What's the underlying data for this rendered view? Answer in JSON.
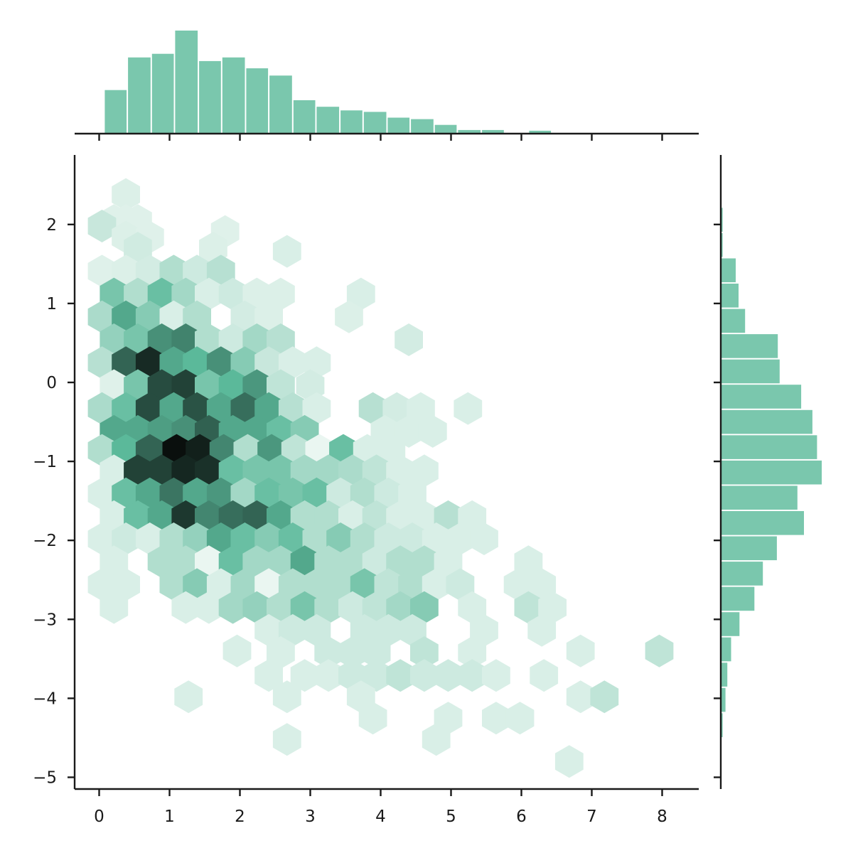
{
  "chart_data": {
    "type": "heatmap",
    "subtype": "hexbin-jointplot",
    "title": "",
    "xlabel": "",
    "ylabel": "",
    "xlim": [
      -0.35,
      8.55
    ],
    "ylim": [
      -5.15,
      2.85
    ],
    "x_ticks": [
      0,
      1,
      2,
      3,
      4,
      5,
      6,
      7,
      8
    ],
    "y_ticks": [
      2,
      1,
      0,
      -1,
      -2,
      -3,
      -4,
      -5
    ],
    "colors": {
      "marginal_bar": "#7ac7ad",
      "hex_light": "#eaf6f1",
      "hex_mid": "#5bb99a",
      "hex_dark": "#0a0f0d",
      "axis": "#1a1a1a"
    },
    "hex_size": 0.201,
    "hexbins": [
      [
        0.38,
        2.38,
        0.05
      ],
      [
        0.38,
        2.05,
        0.04
      ],
      [
        0.21,
        2.05,
        0.04
      ],
      [
        0.55,
        2.05,
        0.04
      ],
      [
        0.04,
        1.98,
        0.12
      ],
      [
        0.38,
        1.84,
        0.05
      ],
      [
        0.72,
        1.84,
        0.04
      ],
      [
        1.79,
        1.91,
        0.04
      ],
      [
        0.55,
        1.7,
        0.09
      ],
      [
        1.62,
        1.7,
        0.05
      ],
      [
        2.67,
        1.66,
        0.06
      ],
      [
        0.04,
        1.41,
        0.04
      ],
      [
        0.38,
        1.41,
        0.05
      ],
      [
        0.72,
        1.41,
        0.08
      ],
      [
        1.06,
        1.41,
        0.2
      ],
      [
        1.39,
        1.41,
        0.1
      ],
      [
        1.73,
        1.41,
        0.18
      ],
      [
        0.21,
        1.12,
        0.4
      ],
      [
        0.55,
        1.12,
        0.2
      ],
      [
        0.89,
        1.12,
        0.45
      ],
      [
        1.23,
        1.12,
        0.25
      ],
      [
        1.56,
        1.12,
        0.06
      ],
      [
        1.9,
        1.12,
        0.1
      ],
      [
        2.24,
        1.12,
        0.05
      ],
      [
        2.58,
        1.12,
        0.05
      ],
      [
        3.72,
        1.12,
        0.06
      ],
      [
        0.04,
        0.83,
        0.22
      ],
      [
        0.38,
        0.83,
        0.55
      ],
      [
        0.72,
        0.83,
        0.35
      ],
      [
        1.06,
        0.83,
        0.06
      ],
      [
        1.39,
        0.83,
        0.2
      ],
      [
        2.07,
        0.83,
        0.08
      ],
      [
        2.41,
        0.83,
        0.05
      ],
      [
        3.55,
        0.83,
        0.05
      ],
      [
        0.21,
        0.54,
        0.3
      ],
      [
        0.55,
        0.54,
        0.4
      ],
      [
        0.89,
        0.54,
        0.62
      ],
      [
        1.23,
        0.54,
        0.66
      ],
      [
        1.56,
        0.54,
        0.2
      ],
      [
        1.9,
        0.54,
        0.1
      ],
      [
        2.24,
        0.54,
        0.25
      ],
      [
        2.58,
        0.54,
        0.18
      ],
      [
        4.4,
        0.54,
        0.08
      ],
      [
        0.04,
        0.25,
        0.18
      ],
      [
        0.38,
        0.25,
        0.75
      ],
      [
        0.72,
        0.25,
        0.92
      ],
      [
        1.06,
        0.25,
        0.55
      ],
      [
        1.39,
        0.25,
        0.5
      ],
      [
        1.73,
        0.25,
        0.62
      ],
      [
        2.07,
        0.25,
        0.35
      ],
      [
        2.41,
        0.25,
        0.12
      ],
      [
        2.75,
        0.25,
        0.06
      ],
      [
        3.09,
        0.25,
        0.06
      ],
      [
        0.21,
        -0.04,
        0.04
      ],
      [
        0.55,
        -0.04,
        0.4
      ],
      [
        0.89,
        -0.04,
        0.82
      ],
      [
        1.23,
        -0.04,
        0.85
      ],
      [
        1.56,
        -0.04,
        0.4
      ],
      [
        1.9,
        -0.04,
        0.5
      ],
      [
        2.24,
        -0.04,
        0.6
      ],
      [
        2.58,
        -0.04,
        0.15
      ],
      [
        3.0,
        -0.04,
        0.08
      ],
      [
        0.04,
        -0.33,
        0.22
      ],
      [
        0.38,
        -0.33,
        0.45
      ],
      [
        0.72,
        -0.33,
        0.82
      ],
      [
        1.06,
        -0.33,
        0.55
      ],
      [
        1.39,
        -0.33,
        0.8
      ],
      [
        1.73,
        -0.33,
        0.55
      ],
      [
        2.07,
        -0.33,
        0.72
      ],
      [
        2.41,
        -0.33,
        0.55
      ],
      [
        2.75,
        -0.33,
        0.18
      ],
      [
        3.09,
        -0.33,
        0.06
      ],
      [
        3.89,
        -0.33,
        0.18
      ],
      [
        4.23,
        -0.33,
        0.08
      ],
      [
        4.57,
        -0.33,
        0.06
      ],
      [
        5.24,
        -0.33,
        0.06
      ],
      [
        0.21,
        -0.62,
        0.55
      ],
      [
        0.55,
        -0.62,
        0.55
      ],
      [
        0.89,
        -0.62,
        0.58
      ],
      [
        1.23,
        -0.62,
        0.62
      ],
      [
        1.56,
        -0.62,
        0.76
      ],
      [
        1.9,
        -0.62,
        0.55
      ],
      [
        2.24,
        -0.62,
        0.55
      ],
      [
        2.58,
        -0.62,
        0.45
      ],
      [
        2.92,
        -0.62,
        0.35
      ],
      [
        4.06,
        -0.62,
        0.06
      ],
      [
        4.4,
        -0.62,
        0.06
      ],
      [
        4.74,
        -0.62,
        0.06
      ],
      [
        0.04,
        -0.86,
        0.2
      ],
      [
        0.38,
        -0.86,
        0.5
      ],
      [
        0.72,
        -0.86,
        0.75
      ],
      [
        1.1,
        -0.86,
        1.0
      ],
      [
        1.43,
        -0.86,
        0.95
      ],
      [
        1.77,
        -0.86,
        0.65
      ],
      [
        2.11,
        -0.86,
        0.2
      ],
      [
        2.45,
        -0.86,
        0.6
      ],
      [
        2.79,
        -0.86,
        0.15
      ],
      [
        3.13,
        -0.86,
        0.0
      ],
      [
        3.47,
        -0.86,
        0.45
      ],
      [
        3.81,
        -0.86,
        0.06
      ],
      [
        4.15,
        -0.86,
        0.06
      ],
      [
        0.21,
        -1.12,
        0.06
      ],
      [
        0.55,
        -1.12,
        0.85
      ],
      [
        0.89,
        -1.12,
        0.85
      ],
      [
        1.23,
        -1.12,
        0.93
      ],
      [
        1.56,
        -1.12,
        0.9
      ],
      [
        1.9,
        -1.12,
        0.45
      ],
      [
        2.24,
        -1.12,
        0.4
      ],
      [
        2.58,
        -1.12,
        0.4
      ],
      [
        2.92,
        -1.12,
        0.25
      ],
      [
        3.26,
        -1.12,
        0.25
      ],
      [
        3.6,
        -1.12,
        0.22
      ],
      [
        3.94,
        -1.12,
        0.15
      ],
      [
        4.28,
        -1.12,
        0.06
      ],
      [
        4.62,
        -1.12,
        0.06
      ],
      [
        0.04,
        -1.41,
        0.06
      ],
      [
        0.38,
        -1.41,
        0.45
      ],
      [
        0.72,
        -1.41,
        0.55
      ],
      [
        1.06,
        -1.41,
        0.7
      ],
      [
        1.39,
        -1.41,
        0.55
      ],
      [
        1.73,
        -1.41,
        0.6
      ],
      [
        2.07,
        -1.41,
        0.25
      ],
      [
        2.41,
        -1.41,
        0.45
      ],
      [
        2.75,
        -1.41,
        0.4
      ],
      [
        3.09,
        -1.41,
        0.45
      ],
      [
        3.43,
        -1.41,
        0.1
      ],
      [
        3.77,
        -1.41,
        0.2
      ],
      [
        4.11,
        -1.41,
        0.1
      ],
      [
        4.45,
        -1.41,
        0.06
      ],
      [
        0.21,
        -1.7,
        0.06
      ],
      [
        0.55,
        -1.7,
        0.45
      ],
      [
        0.89,
        -1.7,
        0.55
      ],
      [
        1.23,
        -1.7,
        0.88
      ],
      [
        1.56,
        -1.7,
        0.65
      ],
      [
        1.9,
        -1.7,
        0.72
      ],
      [
        2.24,
        -1.7,
        0.75
      ],
      [
        2.58,
        -1.7,
        0.55
      ],
      [
        2.92,
        -1.7,
        0.2
      ],
      [
        3.26,
        -1.7,
        0.2
      ],
      [
        3.6,
        -1.7,
        0.06
      ],
      [
        3.94,
        -1.7,
        0.15
      ],
      [
        4.28,
        -1.7,
        0.06
      ],
      [
        4.62,
        -1.7,
        0.06
      ],
      [
        4.96,
        -1.7,
        0.18
      ],
      [
        5.3,
        -1.7,
        0.06
      ],
      [
        0.04,
        -1.98,
        0.06
      ],
      [
        0.38,
        -1.98,
        0.1
      ],
      [
        0.72,
        -1.98,
        0.06
      ],
      [
        1.06,
        -1.98,
        0.2
      ],
      [
        1.39,
        -1.98,
        0.3
      ],
      [
        1.73,
        -1.98,
        0.55
      ],
      [
        2.07,
        -1.98,
        0.45
      ],
      [
        2.41,
        -1.98,
        0.35
      ],
      [
        2.75,
        -1.98,
        0.45
      ],
      [
        3.09,
        -1.98,
        0.2
      ],
      [
        3.43,
        -1.98,
        0.35
      ],
      [
        3.77,
        -1.98,
        0.2
      ],
      [
        4.11,
        -1.98,
        0.1
      ],
      [
        4.45,
        -1.98,
        0.1
      ],
      [
        4.79,
        -1.98,
        0.06
      ],
      [
        5.13,
        -1.98,
        0.06
      ],
      [
        5.47,
        -1.98,
        0.06
      ],
      [
        0.21,
        -2.27,
        0.06
      ],
      [
        0.89,
        -2.27,
        0.2
      ],
      [
        1.23,
        -2.27,
        0.2
      ],
      [
        1.56,
        -2.27,
        0.0
      ],
      [
        1.9,
        -2.27,
        0.45
      ],
      [
        2.24,
        -2.27,
        0.25
      ],
      [
        2.58,
        -2.27,
        0.25
      ],
      [
        2.92,
        -2.27,
        0.55
      ],
      [
        3.26,
        -2.27,
        0.2
      ],
      [
        3.6,
        -2.27,
        0.2
      ],
      [
        3.94,
        -2.27,
        0.1
      ],
      [
        4.28,
        -2.27,
        0.2
      ],
      [
        4.62,
        -2.27,
        0.2
      ],
      [
        4.96,
        -2.27,
        0.06
      ],
      [
        6.1,
        -2.27,
        0.06
      ],
      [
        0.04,
        -2.56,
        0.06
      ],
      [
        0.38,
        -2.56,
        0.06
      ],
      [
        1.06,
        -2.56,
        0.2
      ],
      [
        1.39,
        -2.56,
        0.35
      ],
      [
        1.73,
        -2.56,
        0.06
      ],
      [
        2.07,
        -2.56,
        0.25
      ],
      [
        2.41,
        -2.56,
        0.0
      ],
      [
        2.75,
        -2.56,
        0.2
      ],
      [
        3.09,
        -2.56,
        0.2
      ],
      [
        3.43,
        -2.56,
        0.2
      ],
      [
        3.77,
        -2.56,
        0.4
      ],
      [
        4.11,
        -2.56,
        0.15
      ],
      [
        4.45,
        -2.56,
        0.2
      ],
      [
        4.79,
        -2.56,
        0.06
      ],
      [
        5.13,
        -2.56,
        0.1
      ],
      [
        5.95,
        -2.56,
        0.06
      ],
      [
        6.29,
        -2.56,
        0.06
      ],
      [
        0.21,
        -2.85,
        0.06
      ],
      [
        1.23,
        -2.85,
        0.06
      ],
      [
        1.56,
        -2.85,
        0.06
      ],
      [
        1.9,
        -2.85,
        0.25
      ],
      [
        2.24,
        -2.85,
        0.3
      ],
      [
        2.58,
        -2.85,
        0.2
      ],
      [
        2.92,
        -2.85,
        0.4
      ],
      [
        3.26,
        -2.85,
        0.2
      ],
      [
        3.6,
        -2.85,
        0.1
      ],
      [
        3.94,
        -2.85,
        0.15
      ],
      [
        4.28,
        -2.85,
        0.25
      ],
      [
        4.62,
        -2.85,
        0.35
      ],
      [
        5.3,
        -2.85,
        0.06
      ],
      [
        6.1,
        -2.85,
        0.15
      ],
      [
        6.44,
        -2.85,
        0.06
      ],
      [
        2.41,
        -3.14,
        0.06
      ],
      [
        2.75,
        -3.14,
        0.1
      ],
      [
        3.09,
        -3.14,
        0.1
      ],
      [
        3.77,
        -3.14,
        0.1
      ],
      [
        4.11,
        -3.14,
        0.1
      ],
      [
        4.45,
        -3.14,
        0.1
      ],
      [
        5.47,
        -3.14,
        0.06
      ],
      [
        6.29,
        -3.14,
        0.06
      ],
      [
        1.96,
        -3.4,
        0.06
      ],
      [
        2.58,
        -3.42,
        0.06
      ],
      [
        3.26,
        -3.42,
        0.1
      ],
      [
        3.6,
        -3.42,
        0.1
      ],
      [
        3.94,
        -3.42,
        0.1
      ],
      [
        4.62,
        -3.42,
        0.15
      ],
      [
        5.3,
        -3.42,
        0.06
      ],
      [
        6.84,
        -3.4,
        0.06
      ],
      [
        7.96,
        -3.4,
        0.15
      ],
      [
        2.41,
        -3.71,
        0.06
      ],
      [
        2.92,
        -3.71,
        0.06
      ],
      [
        3.26,
        -3.71,
        0.06
      ],
      [
        3.6,
        -3.71,
        0.1
      ],
      [
        3.94,
        -3.71,
        0.1
      ],
      [
        4.28,
        -3.71,
        0.15
      ],
      [
        4.62,
        -3.71,
        0.1
      ],
      [
        4.96,
        -3.71,
        0.1
      ],
      [
        5.3,
        -3.71,
        0.1
      ],
      [
        5.64,
        -3.71,
        0.06
      ],
      [
        6.32,
        -3.71,
        0.06
      ],
      [
        1.27,
        -3.98,
        0.06
      ],
      [
        2.67,
        -3.98,
        0.06
      ],
      [
        3.72,
        -3.98,
        0.06
      ],
      [
        6.84,
        -3.98,
        0.06
      ],
      [
        7.18,
        -3.98,
        0.15
      ],
      [
        3.89,
        -4.25,
        0.06
      ],
      [
        4.96,
        -4.25,
        0.06
      ],
      [
        5.64,
        -4.25,
        0.06
      ],
      [
        5.98,
        -4.25,
        0.06
      ],
      [
        2.67,
        -4.52,
        0.06
      ],
      [
        4.79,
        -4.52,
        0.06
      ],
      [
        6.68,
        -4.8,
        0.06
      ]
    ],
    "x_marginal_hist": {
      "bin_edges": [
        0.07,
        0.4,
        0.74,
        1.07,
        1.41,
        1.74,
        2.08,
        2.41,
        2.75,
        3.08,
        3.42,
        3.75,
        4.09,
        4.42,
        4.76,
        5.09,
        5.43,
        5.76,
        6.1,
        6.43,
        6.77,
        7.1,
        7.44,
        7.77,
        8.1,
        8.44
      ],
      "counts": [
        60,
        105,
        110,
        142,
        100,
        105,
        90,
        80,
        46,
        37,
        32,
        30,
        22,
        20,
        12,
        5,
        5,
        0,
        4,
        0,
        0,
        0,
        0,
        0,
        0
      ]
    },
    "y_marginal_hist": {
      "bin_edges": [
        -4.5,
        -4.18,
        -3.86,
        -3.54,
        -3.22,
        -2.9,
        -2.58,
        -2.26,
        -1.94,
        -1.62,
        -1.3,
        -0.98,
        -0.66,
        -0.34,
        -0.02,
        0.3,
        0.62,
        0.94,
        1.26,
        1.58,
        1.9,
        2.22
      ],
      "counts": [
        2,
        5,
        7,
        11,
        20,
        36,
        45,
        60,
        89,
        82,
        108,
        103,
        98,
        86,
        63,
        61,
        26,
        19,
        16,
        2,
        2
      ]
    }
  }
}
